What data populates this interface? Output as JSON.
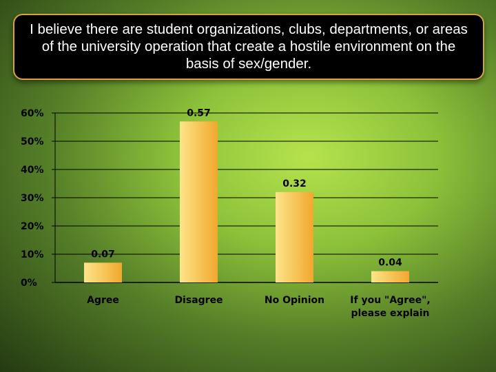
{
  "slide": {
    "title": "I believe there are student organizations, clubs, departments, or areas of the university operation that create a hostile environment on the basis of sex/gender."
  },
  "colors": {
    "bar_light": "#fde58a",
    "bar_dark": "#f1a72d",
    "title_bg": "#000000",
    "title_border": "#d9a441"
  },
  "chart_data": {
    "type": "bar",
    "categories": [
      "Agree",
      "Disagree",
      "No Opinion",
      "If you \"Agree\", please explain"
    ],
    "category_lines": [
      [
        "Agree"
      ],
      [
        "Disagree"
      ],
      [
        "No Opinion"
      ],
      [
        "If you \"Agree\",",
        "please explain"
      ]
    ],
    "values": [
      0.07,
      0.57,
      0.32,
      0.04
    ],
    "data_labels": [
      "0.07",
      "0.57",
      "0.32",
      "0.04"
    ],
    "yticks": [
      0,
      0.1,
      0.2,
      0.3,
      0.4,
      0.5,
      0.6
    ],
    "ytick_labels": [
      "0%",
      "10%",
      "20%",
      "30%",
      "40%",
      "50%",
      "60%"
    ],
    "ylim": [
      0,
      0.6
    ],
    "grid": true,
    "legend": "none"
  }
}
